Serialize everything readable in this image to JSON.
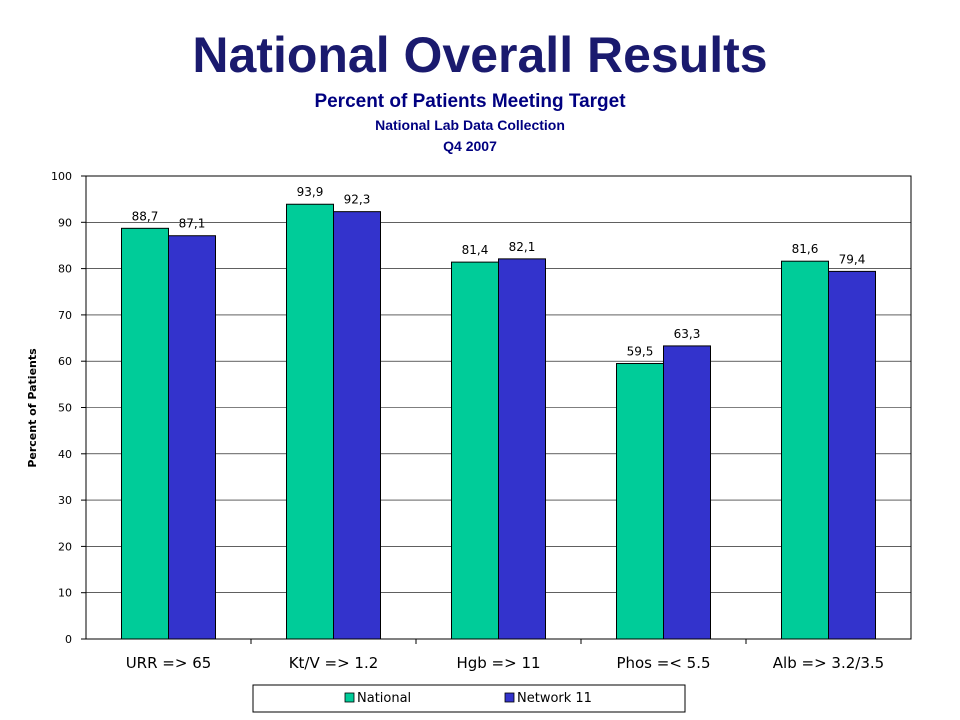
{
  "page": {
    "title": "National Overall Results"
  },
  "chart_data": {
    "type": "bar",
    "title": "Percent of Patients Meeting Target",
    "subtitle": "National Lab Data Collection",
    "subtitle2": "Q4 2007",
    "xlabel": "",
    "ylabel": "Percent of Patients",
    "ylim": [
      0,
      100
    ],
    "yticks": [
      0,
      10,
      20,
      30,
      40,
      50,
      60,
      70,
      80,
      90,
      100
    ],
    "categories": [
      "URR => 65",
      "Kt/V => 1.2",
      "Hgb => 11",
      "Phos =< 5.5",
      "Alb => 3.2/3.5"
    ],
    "series": [
      {
        "name": "National",
        "color": "#00cc99",
        "values": [
          88.7,
          93.9,
          81.4,
          59.5,
          81.6
        ],
        "labels": [
          "88,7",
          "93,9",
          "81,4",
          "59,5",
          "81,6"
        ]
      },
      {
        "name": "Network 11",
        "color": "#3333cc",
        "values": [
          87.1,
          92.3,
          82.1,
          63.3,
          79.4
        ],
        "labels": [
          "87,1",
          "92,3",
          "82,1",
          "63,3",
          "79,4"
        ]
      }
    ],
    "grid": true,
    "legend": "bottom-center"
  }
}
